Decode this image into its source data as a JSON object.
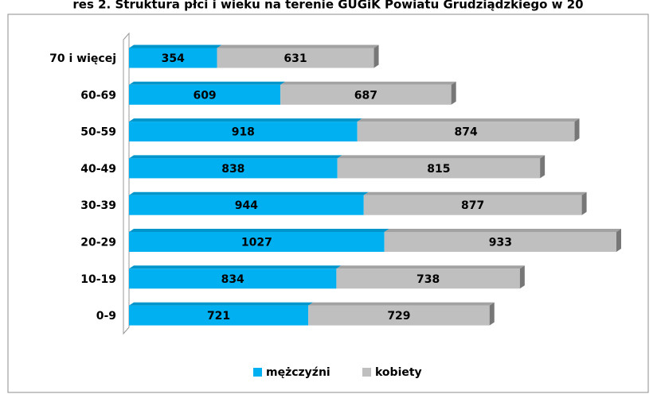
{
  "chart_data": {
    "type": "bar",
    "orientation": "horizontal",
    "stacked": true,
    "title": "res 2. Struktura płci i wieku na terenie GUGiK Powiatu Grudziądzkiego w 20",
    "categories": [
      "70 i więcej",
      "60-69",
      "50-59",
      "40-49",
      "30-39",
      "20-29",
      "10-19",
      "0-9"
    ],
    "series": [
      {
        "name": "mężczyźni",
        "color": "#00b0f0",
        "values": [
          354,
          609,
          918,
          838,
          944,
          1027,
          834,
          721
        ]
      },
      {
        "name": "kobiety",
        "color": "#bfbfbf",
        "values": [
          631,
          687,
          874,
          815,
          877,
          933,
          738,
          729
        ]
      }
    ],
    "legend": "bottom"
  }
}
